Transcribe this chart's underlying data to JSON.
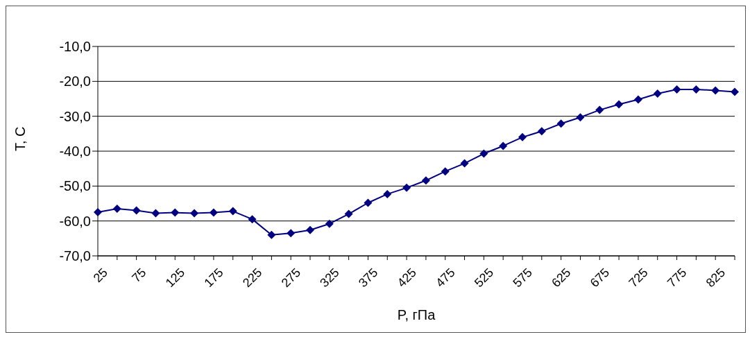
{
  "chart_data": {
    "type": "line",
    "xlabel": "P, гПа",
    "ylabel": "T, C",
    "categories": [
      "25",
      null,
      "75",
      null,
      "125",
      null,
      "175",
      null,
      "225",
      null,
      "275",
      null,
      "325",
      null,
      "375",
      null,
      "425",
      null,
      "475",
      null,
      "525",
      null,
      "575",
      null,
      "625",
      null,
      "675",
      null,
      "725",
      null,
      "775",
      null,
      "825",
      null
    ],
    "series": [
      {
        "color": "#000080",
        "values": [
          -57.5,
          -56.5,
          -57,
          -57.8,
          -57.6,
          -57.8,
          -57.6,
          -57.2,
          -59.5,
          -64,
          -63.5,
          -62.6,
          -60.8,
          -58,
          -54.8,
          -52.3,
          -50.5,
          -48.4,
          -45.8,
          -43.5,
          -40.7,
          -38.5,
          -36,
          -34.3,
          -32.1,
          -30.3,
          -28.2,
          -26.6,
          -25.2,
          -23.5,
          -22.3,
          -22.3,
          -22.6,
          -23
        ]
      }
    ],
    "ylim": [
      -70,
      -10
    ],
    "yticks": [
      {
        "value": -70,
        "label": "-70,0"
      },
      {
        "value": -60,
        "label": "-60,0"
      },
      {
        "value": -50,
        "label": "-50,0"
      },
      {
        "value": -40,
        "label": "-40,0"
      },
      {
        "value": -30,
        "label": "-30,0"
      },
      {
        "value": -20,
        "label": "-20,0"
      },
      {
        "value": -10,
        "label": "-10,0"
      }
    ],
    "grid": "y",
    "marker": "diamond",
    "line_style": "solid",
    "legend": false
  }
}
